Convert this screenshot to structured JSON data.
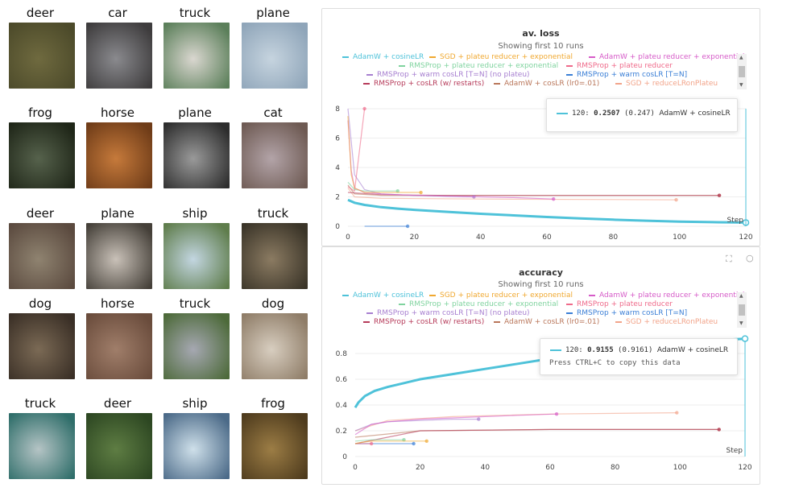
{
  "thumbnails": [
    {
      "label": "deer",
      "colors": [
        "#6f6a3f",
        "#4c4a2a"
      ]
    },
    {
      "label": "car",
      "colors": [
        "#8a8a8e",
        "#3e3c3d"
      ]
    },
    {
      "label": "truck",
      "colors": [
        "#dad7d0",
        "#5b7f5a"
      ]
    },
    {
      "label": "plane",
      "colors": [
        "#c6d4df",
        "#8fa5b9"
      ]
    },
    {
      "label": "frog",
      "colors": [
        "#56624c",
        "#1f2618"
      ]
    },
    {
      "label": "horse",
      "colors": [
        "#c67a3b",
        "#6f3c18"
      ]
    },
    {
      "label": "plane",
      "colors": [
        "#9a9a9a",
        "#2d2d2d"
      ]
    },
    {
      "label": "cat",
      "colors": [
        "#b3a4a8",
        "#6e5a53"
      ]
    },
    {
      "label": "deer",
      "colors": [
        "#8f8370",
        "#5b4a3f"
      ]
    },
    {
      "label": "plane",
      "colors": [
        "#c9c1b8",
        "#454039"
      ]
    },
    {
      "label": "ship",
      "colors": [
        "#c3d6e1",
        "#5f7d4c"
      ]
    },
    {
      "label": "truck",
      "colors": [
        "#8b7b62",
        "#3a3428"
      ]
    },
    {
      "label": "dog",
      "colors": [
        "#7b6a55",
        "#3a2f26"
      ]
    },
    {
      "label": "horse",
      "colors": [
        "#a07e6a",
        "#6a4c3c"
      ]
    },
    {
      "label": "truck",
      "colors": [
        "#a6a8b2",
        "#4d6a3a"
      ]
    },
    {
      "label": "dog",
      "colors": [
        "#d8cec0",
        "#8f7d68"
      ]
    },
    {
      "label": "truck",
      "colors": [
        "#b5c4c5",
        "#2f6e6a"
      ]
    },
    {
      "label": "deer",
      "colors": [
        "#5e7d43",
        "#2d4722"
      ]
    },
    {
      "label": "ship",
      "colors": [
        "#cfe0ea",
        "#4b6a88"
      ]
    },
    {
      "label": "frog",
      "colors": [
        "#9c7d45",
        "#4e3b1d"
      ]
    }
  ],
  "legend": [
    {
      "name": "AdamW + cosineLR",
      "color": "#4ec2d9"
    },
    {
      "name": "SGD + plateu reducer + exponential",
      "color": "#f0a830"
    },
    {
      "name": "AdamW + plateu reducer + exponential",
      "color": "#d65bc8"
    },
    {
      "name": "RMSProp + plateu reducer + exponential",
      "color": "#7fd39e"
    },
    {
      "name": "RMSProp + plateu reducer",
      "color": "#ef6a8a"
    },
    {
      "name": "RMSProp + warm cosLR [T=N] (no plateu)",
      "color": "#a77fd0"
    },
    {
      "name": "RMSProp + warm cosLR [T=N]",
      "color": "#3b7fd6"
    },
    {
      "name": "RMSProp + cosLR (w/ restarts)",
      "color": "#b63b5a"
    },
    {
      "name": "AdamW + cosLR (lr0=.01)",
      "color": "#b9765a"
    },
    {
      "name": "SGD + reduceLRonPlateu",
      "color": "#f2a48a"
    }
  ],
  "loss_panel": {
    "title": "av. loss",
    "subtitle": "Showing first 10 runs",
    "step_label": "Step",
    "tooltip": {
      "step": "120:",
      "value": "0.2507",
      "smoothed": "(0.247)",
      "run": "AdamW + cosineLR"
    }
  },
  "acc_panel": {
    "title": "accuracy",
    "subtitle": "Showing first 10 runs",
    "step_label": "Step",
    "tooltip": {
      "step": "120:",
      "value": "0.9155",
      "smoothed": "(0.9161)",
      "run": "AdamW + cosineLR",
      "hint": "Press CTRL+C to copy this data"
    }
  },
  "chart_data": [
    {
      "type": "line",
      "title": "av. loss",
      "xlabel": "Step",
      "xlim": [
        0,
        120
      ],
      "ylim": [
        0,
        8
      ],
      "xticks": [
        0,
        20,
        40,
        60,
        80,
        100,
        120
      ],
      "yticks": [
        0,
        2,
        4,
        6,
        8
      ],
      "series": [
        {
          "name": "AdamW + cosineLR",
          "x": [
            0,
            2,
            5,
            10,
            15,
            20,
            30,
            40,
            50,
            60,
            70,
            80,
            90,
            100,
            110,
            120
          ],
          "y": [
            1.8,
            1.6,
            1.45,
            1.3,
            1.2,
            1.12,
            0.98,
            0.85,
            0.74,
            0.63,
            0.53,
            0.45,
            0.38,
            0.32,
            0.28,
            0.25
          ]
        },
        {
          "name": "SGD + plateu reducer + exponential",
          "x": [
            0,
            1,
            2,
            5,
            10,
            15,
            22
          ],
          "y": [
            7.5,
            3.5,
            2.6,
            2.3,
            2.3,
            2.3,
            2.3
          ]
        },
        {
          "name": "AdamW + plateu reducer + exponential",
          "x": [
            0,
            1,
            2,
            5,
            10,
            20,
            30,
            40,
            50,
            62
          ],
          "y": [
            7.2,
            3.8,
            2.6,
            2.3,
            2.2,
            2.1,
            2.05,
            2.0,
            1.95,
            1.85
          ]
        },
        {
          "name": "RMSProp + plateu reducer + exponential",
          "x": [
            0,
            2,
            5,
            10,
            15
          ],
          "y": [
            3.0,
            2.5,
            2.4,
            2.4,
            2.4
          ]
        },
        {
          "name": "RMSProp + plateu reducer",
          "x": [
            0,
            2,
            5
          ],
          "y": [
            2.7,
            2.4,
            8.0
          ]
        },
        {
          "name": "RMSProp + warm cosLR [T=N] (no plateu)",
          "x": [
            0,
            2,
            5,
            10,
            20,
            38
          ],
          "y": [
            8.0,
            3.5,
            2.5,
            2.2,
            2.1,
            2.0
          ]
        },
        {
          "name": "RMSProp + warm cosLR [T=N]",
          "x": [
            5,
            7,
            9,
            11,
            13,
            15,
            17,
            18
          ],
          "y": [
            0,
            0,
            0,
            0,
            0,
            0,
            0,
            0
          ]
        },
        {
          "name": "RMSProp + cosLR (w/ restarts)",
          "x": [
            0,
            10,
            30,
            60,
            90,
            112
          ],
          "y": [
            2.3,
            2.15,
            2.1,
            2.1,
            2.1,
            2.1
          ]
        },
        {
          "name": "AdamW + cosLR (lr0=.01)",
          "x": [
            0,
            2,
            10,
            40,
            80,
            112
          ],
          "y": [
            2.8,
            2.2,
            2.1,
            2.1,
            2.1,
            2.1
          ]
        },
        {
          "name": "SGD + reduceLRonPlateu",
          "x": [
            0,
            2,
            10,
            40,
            80,
            99
          ],
          "y": [
            2.6,
            2.0,
            1.9,
            1.85,
            1.82,
            1.8
          ]
        }
      ]
    },
    {
      "type": "line",
      "title": "accuracy",
      "xlabel": "Step",
      "xlim": [
        0,
        120
      ],
      "ylim": [
        0,
        0.9
      ],
      "xticks": [
        0,
        20,
        40,
        60,
        80,
        100,
        120
      ],
      "yticks": [
        0,
        0.2,
        0.4,
        0.6,
        0.8
      ],
      "series": [
        {
          "name": "AdamW + cosineLR",
          "x": [
            0,
            1,
            3,
            6,
            10,
            15,
            20,
            30,
            40,
            50,
            60,
            70,
            80,
            90,
            100,
            110,
            120
          ],
          "y": [
            0.38,
            0.42,
            0.47,
            0.51,
            0.54,
            0.57,
            0.6,
            0.64,
            0.68,
            0.72,
            0.76,
            0.79,
            0.83,
            0.86,
            0.88,
            0.9,
            0.915
          ]
        },
        {
          "name": "SGD + plateu reducer + exponential",
          "x": [
            0,
            2,
            5,
            10,
            15,
            22
          ],
          "y": [
            0.1,
            0.11,
            0.12,
            0.12,
            0.12,
            0.12
          ]
        },
        {
          "name": "AdamW + plateu reducer + exponential",
          "x": [
            0,
            5,
            10,
            20,
            30,
            40,
            50,
            62
          ],
          "y": [
            0.17,
            0.25,
            0.27,
            0.29,
            0.3,
            0.31,
            0.32,
            0.33
          ]
        },
        {
          "name": "RMSProp + plateu reducer + exponential",
          "x": [
            0,
            5,
            10,
            15
          ],
          "y": [
            0.12,
            0.13,
            0.13,
            0.13
          ]
        },
        {
          "name": "RMSProp + plateu reducer",
          "x": [
            0,
            2,
            5
          ],
          "y": [
            0.1,
            0.1,
            0.1
          ]
        },
        {
          "name": "RMSProp + warm cosLR [T=N] (no plateu)",
          "x": [
            0,
            5,
            10,
            20,
            30,
            38
          ],
          "y": [
            0.2,
            0.25,
            0.27,
            0.28,
            0.29,
            0.29
          ]
        },
        {
          "name": "RMSProp + warm cosLR [T=N]",
          "x": [
            0,
            5,
            10,
            18
          ],
          "y": [
            0.1,
            0.1,
            0.1,
            0.1
          ]
        },
        {
          "name": "RMSProp + cosLR (w/ restarts)",
          "x": [
            0,
            20,
            60,
            112
          ],
          "y": [
            0.1,
            0.2,
            0.21,
            0.21
          ]
        },
        {
          "name": "AdamW + cosLR (lr0=.01)",
          "x": [
            0,
            20,
            60,
            112
          ],
          "y": [
            0.15,
            0.2,
            0.21,
            0.21
          ]
        },
        {
          "name": "SGD + reduceLRonPlateu",
          "x": [
            0,
            10,
            30,
            60,
            99
          ],
          "y": [
            0.2,
            0.28,
            0.31,
            0.33,
            0.34
          ]
        }
      ]
    }
  ]
}
